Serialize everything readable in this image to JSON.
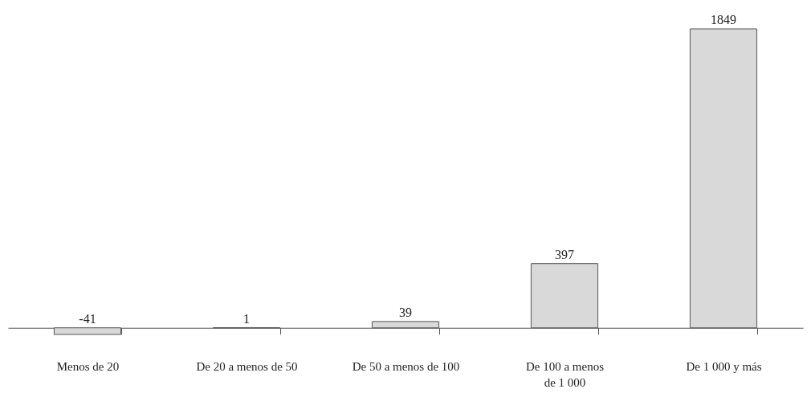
{
  "chart_data": {
    "type": "bar",
    "categories": [
      "Menos de 20",
      "De 20 a menos de 50",
      "De 50 a menos de 100",
      "De 100 a menos de 1 000",
      "De 1 000 y más"
    ],
    "values": [
      -41,
      1,
      39,
      397,
      1849
    ],
    "color": "#d9d9d9",
    "data_labels": true,
    "tick_labels": "x"
  }
}
